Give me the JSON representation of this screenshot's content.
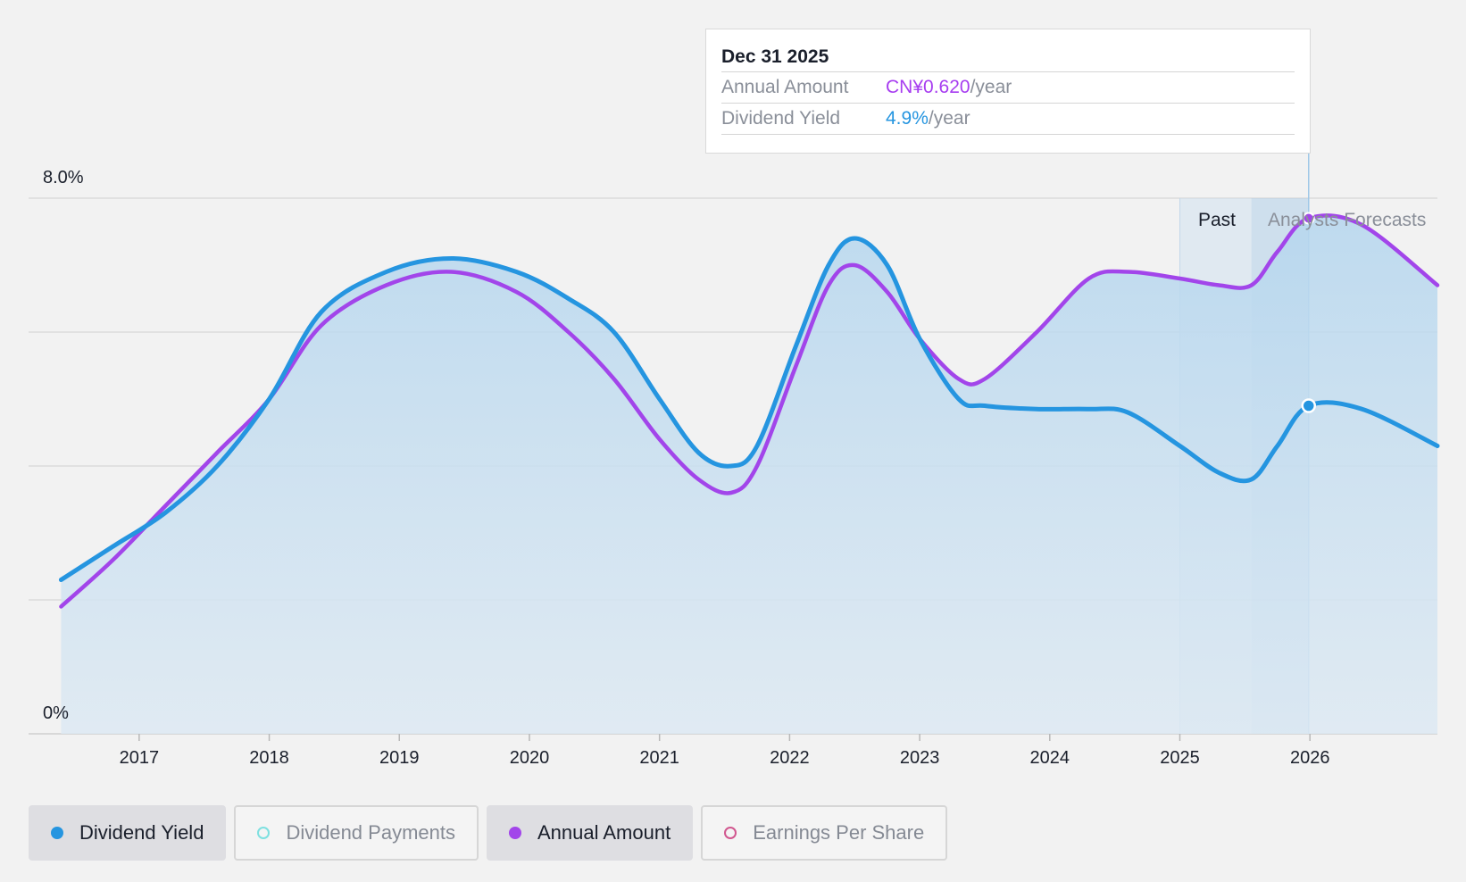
{
  "tooltip": {
    "date": "Dec 31 2025",
    "rows": [
      {
        "label": "Annual Amount",
        "value": "CN¥0.620",
        "unit": "/year"
      },
      {
        "label": "Dividend Yield",
        "value": "4.9%",
        "unit": "/year"
      }
    ]
  },
  "regions": {
    "past_label": "Past",
    "forecast_label": "Analysts Forecasts"
  },
  "legend": [
    {
      "label": "Dividend Yield",
      "color": "#2595e0",
      "active": true,
      "filled": true
    },
    {
      "label": "Dividend Payments",
      "color": "#7ee0e0",
      "active": false,
      "filled": false
    },
    {
      "label": "Annual Amount",
      "color": "#a245ea",
      "active": true,
      "filled": true
    },
    {
      "label": "Earnings Per Share",
      "color": "#d1578f",
      "active": false,
      "filled": false
    }
  ],
  "colors": {
    "yield": "#2595e0",
    "amount": "#a245ea",
    "grid": "#d0d0d0"
  },
  "chart_data": {
    "type": "line",
    "title": "",
    "xlabel": "",
    "ylabel": "",
    "x_ticks": [
      "2017",
      "2018",
      "2019",
      "2020",
      "2021",
      "2022",
      "2023",
      "2024",
      "2025",
      "2026"
    ],
    "y_tick_labels": [
      "0%",
      "8.0%"
    ],
    "ylim": [
      0,
      8.0
    ],
    "xlim": [
      2016.15,
      2026.98
    ],
    "grid": true,
    "past_region": [
      2025.0,
      2025.55
    ],
    "forecast_region": [
      2025.55,
      2025.99
    ],
    "highlight_x": 2025.99,
    "series": [
      {
        "name": "Dividend Yield",
        "x": [
          2016.4,
          2016.8,
          2017.2,
          2017.6,
          2018.0,
          2018.4,
          2018.9,
          2019.4,
          2019.9,
          2020.3,
          2020.65,
          2021.0,
          2021.3,
          2021.55,
          2021.75,
          2022.05,
          2022.3,
          2022.5,
          2022.75,
          2023.0,
          2023.3,
          2023.5,
          2023.9,
          2024.3,
          2024.6,
          2025.0,
          2025.3,
          2025.55,
          2025.75,
          2025.99,
          2026.4,
          2026.98
        ],
        "values": [
          2.3,
          2.8,
          3.3,
          4.0,
          5.0,
          6.3,
          6.9,
          7.1,
          6.9,
          6.5,
          6.0,
          5.0,
          4.2,
          4.0,
          4.3,
          5.8,
          7.0,
          7.4,
          7.0,
          5.9,
          5.0,
          4.9,
          4.85,
          4.85,
          4.8,
          4.3,
          3.9,
          3.8,
          4.3,
          4.9,
          4.85,
          4.3
        ]
      },
      {
        "name": "Annual Amount",
        "x": [
          2016.4,
          2016.8,
          2017.2,
          2017.6,
          2018.0,
          2018.4,
          2018.9,
          2019.4,
          2019.9,
          2020.3,
          2020.65,
          2021.0,
          2021.3,
          2021.55,
          2021.75,
          2022.05,
          2022.3,
          2022.5,
          2022.75,
          2023.0,
          2023.3,
          2023.5,
          2023.9,
          2024.3,
          2024.6,
          2025.0,
          2025.3,
          2025.55,
          2025.75,
          2025.99,
          2026.4,
          2026.98
        ],
        "values": [
          1.9,
          2.6,
          3.4,
          4.2,
          5.0,
          6.1,
          6.7,
          6.9,
          6.6,
          6.0,
          5.3,
          4.4,
          3.8,
          3.6,
          4.0,
          5.5,
          6.7,
          7.0,
          6.6,
          5.9,
          5.3,
          5.3,
          6.0,
          6.8,
          6.9,
          6.8,
          6.7,
          6.7,
          7.2,
          7.7,
          7.6,
          6.7
        ]
      }
    ]
  }
}
